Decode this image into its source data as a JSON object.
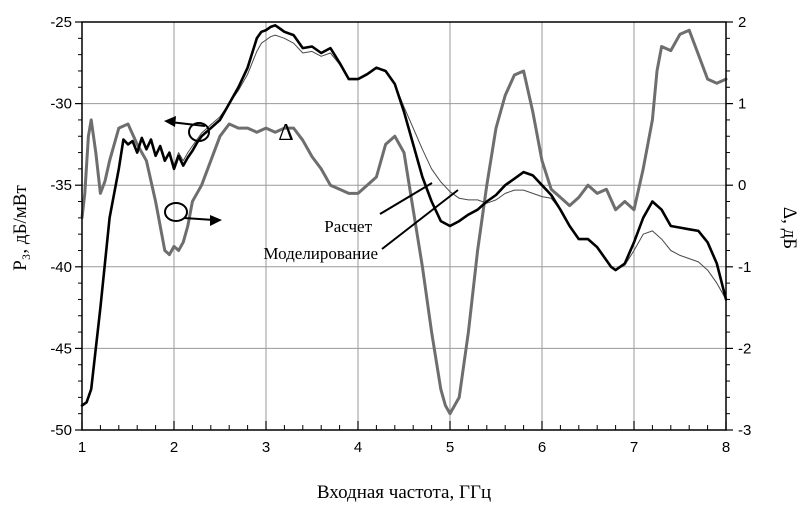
{
  "chart_data": {
    "type": "line",
    "xlabel": "Входная частота, ГГц",
    "ylabel_left": "P₃, дБ/мВт",
    "ylabel_right": "Δ, дБ",
    "xlim": [
      1,
      8
    ],
    "ylim_left": [
      -50,
      -25
    ],
    "ylim_right": [
      -3,
      2
    ],
    "x_ticks": [
      "1",
      "2",
      "3",
      "4",
      "5",
      "6",
      "7",
      "8"
    ],
    "y_ticks_left": [
      "-25",
      "-30",
      "-35",
      "-40",
      "-45",
      "-50"
    ],
    "y_ticks_right": [
      "2",
      "1",
      "0",
      "-1",
      "-2",
      "-3"
    ],
    "grid": true,
    "annotations": {
      "raschet": "Расчет",
      "modelirovanie": "Моделирование",
      "delta": "Δ"
    },
    "series": [
      {
        "name": "Расчет",
        "axis": "left",
        "color": "#000000",
        "x": [
          1.0,
          1.05,
          1.1,
          1.2,
          1.3,
          1.4,
          1.45,
          1.5,
          1.55,
          1.6,
          1.65,
          1.7,
          1.75,
          1.8,
          1.85,
          1.9,
          1.95,
          2.0,
          2.05,
          2.1,
          2.15,
          2.2,
          2.25,
          2.3,
          2.4,
          2.5,
          2.6,
          2.7,
          2.8,
          2.9,
          2.95,
          3.0,
          3.05,
          3.1,
          3.15,
          3.2,
          3.3,
          3.4,
          3.5,
          3.6,
          3.7,
          3.8,
          3.9,
          4.0,
          4.1,
          4.2,
          4.3,
          4.4,
          4.5,
          4.6,
          4.7,
          4.8,
          4.9,
          5.0,
          5.1,
          5.2,
          5.3,
          5.4,
          5.5,
          5.6,
          5.7,
          5.8,
          5.9,
          6.0,
          6.1,
          6.2,
          6.3,
          6.4,
          6.5,
          6.6,
          6.7,
          6.75,
          6.8,
          6.9,
          7.0,
          7.1,
          7.2,
          7.3,
          7.4,
          7.5,
          7.6,
          7.7,
          7.8,
          7.9,
          8.0
        ],
        "y": [
          -48.5,
          -48.3,
          -47.5,
          -42.5,
          -37.0,
          -34.0,
          -32.2,
          -32.5,
          -32.3,
          -33.0,
          -32.1,
          -32.8,
          -32.2,
          -33.2,
          -32.6,
          -33.5,
          -33.0,
          -34.0,
          -33.2,
          -33.8,
          -33.3,
          -32.9,
          -32.4,
          -32.0,
          -31.5,
          -31.0,
          -30.0,
          -29.0,
          -27.8,
          -26.0,
          -25.6,
          -25.5,
          -25.3,
          -25.2,
          -25.4,
          -25.6,
          -25.8,
          -26.6,
          -26.5,
          -26.9,
          -26.6,
          -27.5,
          -28.5,
          -28.5,
          -28.2,
          -27.8,
          -28.0,
          -28.8,
          -30.5,
          -32.5,
          -34.5,
          -36.0,
          -37.2,
          -37.5,
          -37.2,
          -36.8,
          -36.5,
          -36.0,
          -35.6,
          -35.0,
          -34.6,
          -34.2,
          -34.4,
          -35.0,
          -35.6,
          -36.5,
          -37.5,
          -38.3,
          -38.3,
          -38.8,
          -39.6,
          -40.0,
          -40.2,
          -39.8,
          -38.5,
          -37.0,
          -36.0,
          -36.5,
          -37.5,
          -37.6,
          -37.7,
          -37.8,
          -38.5,
          -39.8,
          -42.0
        ]
      },
      {
        "name": "Моделирование",
        "axis": "left",
        "color": "#4a4a4a",
        "x": [
          1.0,
          1.05,
          1.1,
          1.2,
          1.3,
          1.4,
          1.45,
          1.5,
          1.55,
          1.6,
          1.65,
          1.7,
          1.75,
          1.8,
          1.85,
          1.9,
          1.95,
          2.0,
          2.05,
          2.1,
          2.15,
          2.2,
          2.25,
          2.3,
          2.4,
          2.5,
          2.6,
          2.7,
          2.8,
          2.9,
          2.95,
          3.0,
          3.05,
          3.1,
          3.15,
          3.2,
          3.3,
          3.4,
          3.5,
          3.6,
          3.7,
          3.8,
          3.9,
          4.0,
          4.1,
          4.2,
          4.3,
          4.4,
          4.5,
          4.6,
          4.7,
          4.8,
          4.9,
          5.0,
          5.1,
          5.2,
          5.3,
          5.4,
          5.5,
          5.6,
          5.7,
          5.8,
          5.9,
          6.0,
          6.1,
          6.2,
          6.3,
          6.4,
          6.5,
          6.6,
          6.7,
          6.75,
          6.8,
          6.9,
          7.0,
          7.1,
          7.2,
          7.3,
          7.4,
          7.5,
          7.6,
          7.7,
          7.8,
          7.9,
          8.0
        ],
        "y": [
          -48.5,
          -48.3,
          -47.5,
          -42.5,
          -37.0,
          -34.0,
          -32.2,
          -32.5,
          -32.3,
          -33.0,
          -32.1,
          -32.8,
          -32.2,
          -33.2,
          -32.6,
          -33.5,
          -33.0,
          -33.8,
          -33.0,
          -33.5,
          -33.0,
          -32.6,
          -32.2,
          -31.8,
          -31.3,
          -30.8,
          -30.0,
          -29.2,
          -28.2,
          -26.8,
          -26.3,
          -26.1,
          -25.9,
          -25.8,
          -25.9,
          -26.0,
          -26.3,
          -26.9,
          -26.8,
          -27.1,
          -26.9,
          -27.6,
          -28.5,
          -28.5,
          -28.2,
          -27.8,
          -28.0,
          -28.8,
          -30.2,
          -31.5,
          -32.8,
          -34.0,
          -34.8,
          -35.4,
          -35.8,
          -35.9,
          -35.9,
          -36.1,
          -35.9,
          -35.5,
          -35.3,
          -35.3,
          -35.5,
          -35.7,
          -35.8,
          -36.5,
          -37.5,
          -38.3,
          -38.3,
          -38.8,
          -39.6,
          -40.0,
          -40.2,
          -39.9,
          -39.0,
          -38.0,
          -37.8,
          -38.3,
          -39.0,
          -39.3,
          -39.5,
          -39.7,
          -40.2,
          -41.0,
          -42.0
        ]
      },
      {
        "name": "Δ",
        "axis": "right",
        "color": "#6e6e6e",
        "x": [
          1.0,
          1.03,
          1.07,
          1.1,
          1.15,
          1.2,
          1.25,
          1.3,
          1.4,
          1.5,
          1.6,
          1.7,
          1.8,
          1.85,
          1.9,
          1.95,
          2.0,
          2.05,
          2.1,
          2.15,
          2.2,
          2.3,
          2.4,
          2.5,
          2.6,
          2.7,
          2.8,
          2.9,
          3.0,
          3.1,
          3.2,
          3.3,
          3.4,
          3.5,
          3.6,
          3.7,
          3.8,
          3.9,
          4.0,
          4.1,
          4.2,
          4.3,
          4.4,
          4.5,
          4.6,
          4.7,
          4.8,
          4.9,
          4.95,
          5.0,
          5.05,
          5.1,
          5.2,
          5.3,
          5.4,
          5.5,
          5.6,
          5.7,
          5.8,
          5.9,
          6.0,
          6.1,
          6.2,
          6.3,
          6.4,
          6.5,
          6.6,
          6.7,
          6.8,
          6.9,
          7.0,
          7.1,
          7.2,
          7.25,
          7.3,
          7.4,
          7.5,
          7.6,
          7.7,
          7.8,
          7.9,
          8.0
        ],
        "y": [
          -0.4,
          -0.1,
          0.6,
          0.8,
          0.4,
          -0.1,
          0.05,
          0.3,
          0.7,
          0.75,
          0.5,
          0.3,
          -0.2,
          -0.5,
          -0.8,
          -0.85,
          -0.75,
          -0.8,
          -0.7,
          -0.5,
          -0.2,
          0.0,
          0.3,
          0.6,
          0.75,
          0.7,
          0.7,
          0.65,
          0.7,
          0.65,
          0.7,
          0.7,
          0.55,
          0.35,
          0.2,
          0.0,
          -0.05,
          -0.1,
          -0.1,
          0.0,
          0.1,
          0.5,
          0.6,
          0.4,
          -0.3,
          -1.0,
          -1.8,
          -2.5,
          -2.7,
          -2.8,
          -2.7,
          -2.6,
          -1.8,
          -0.8,
          0.0,
          0.7,
          1.1,
          1.35,
          1.4,
          0.9,
          0.3,
          -0.05,
          -0.15,
          -0.25,
          -0.15,
          0.0,
          -0.1,
          -0.05,
          -0.3,
          -0.2,
          -0.3,
          0.2,
          0.8,
          1.4,
          1.7,
          1.65,
          1.85,
          1.9,
          1.6,
          1.3,
          1.25,
          1.3
        ]
      }
    ]
  }
}
